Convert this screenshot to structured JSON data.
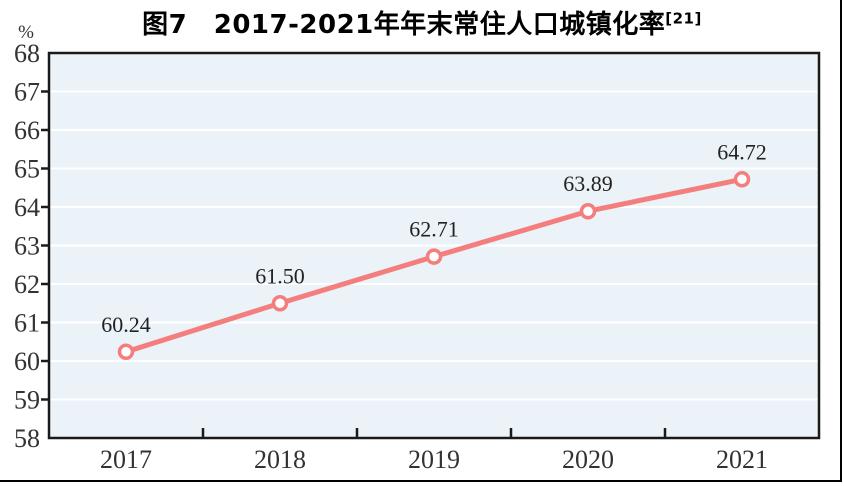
{
  "chart_data": {
    "type": "line",
    "title": "图7　2017-2021年年末常住人口城镇化率",
    "title_superscript": "[21]",
    "ylabel": "%",
    "categories": [
      "2017",
      "2018",
      "2019",
      "2020",
      "2021"
    ],
    "values": [
      60.24,
      61.5,
      62.71,
      63.89,
      64.72
    ],
    "point_labels": [
      "60.24",
      "61.50",
      "62.71",
      "63.89",
      "64.72"
    ],
    "ylim": [
      58,
      68
    ],
    "yticks": [
      58,
      59,
      60,
      61,
      62,
      63,
      64,
      65,
      66,
      67,
      68
    ],
    "grid": true,
    "legend_position": "none",
    "colors": {
      "line": "#F47E7E",
      "marker_fill": "#FFFFFF",
      "plot_background": "#EBF2F8",
      "gridline": "#FFFFFF",
      "axis": "#1A1A1A",
      "tick_text": "#333333",
      "point_label_text": "#222222"
    }
  }
}
